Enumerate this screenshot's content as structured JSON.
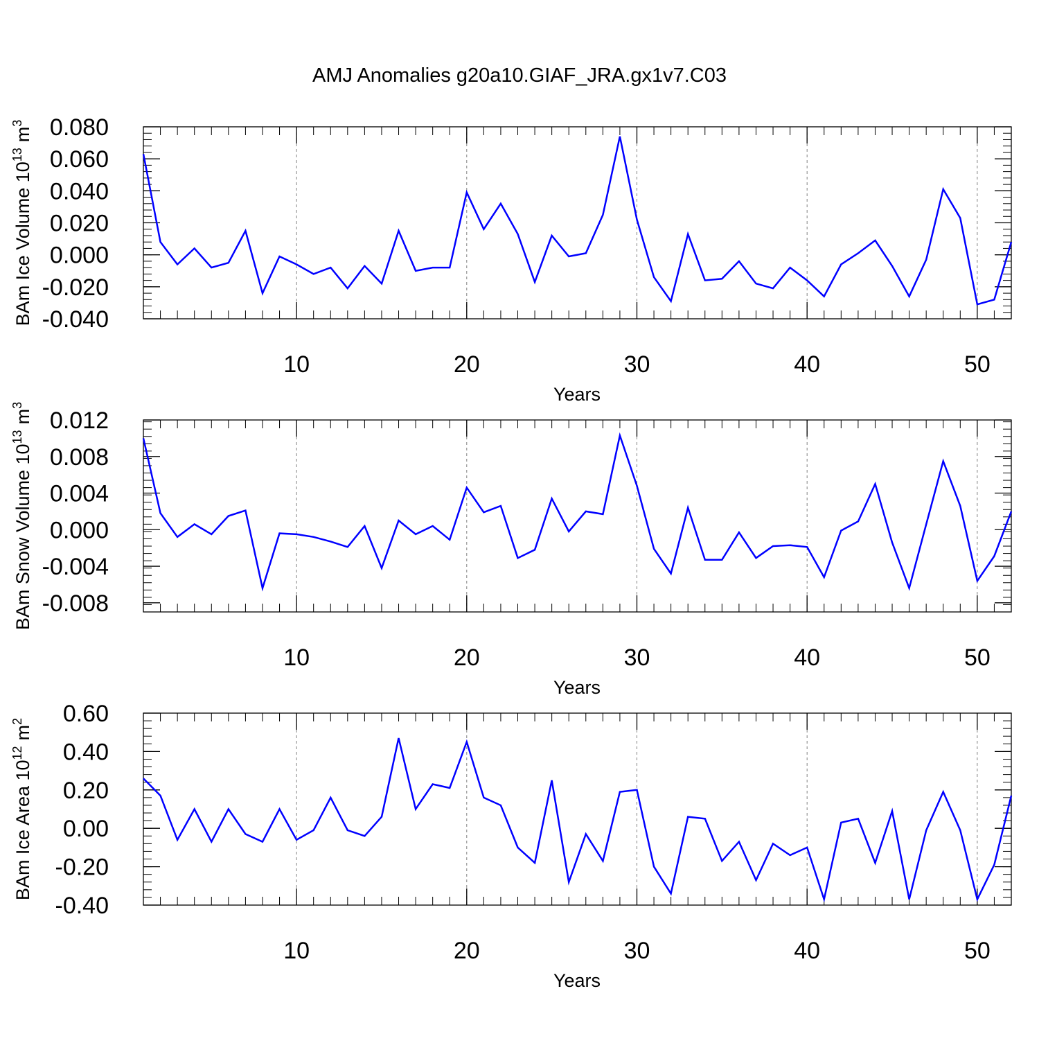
{
  "figure": {
    "title": "AMJ Anomalies g20a10.GIAF_JRA.gx1v7.C03"
  },
  "colors": {
    "line": "#0000ff",
    "axis": "#000000",
    "grid": "#808080"
  },
  "chart_data": [
    {
      "type": "line",
      "xlabel": "Years",
      "ylabel": "BAm Ice Volume 10",
      "ylabel_exponent": "13",
      "ylabel_unit": "m",
      "ylabel_unit_exponent": "3",
      "xlim": [
        1,
        52
      ],
      "ylim": [
        -0.04,
        0.08
      ],
      "xticks": [
        "10",
        "20",
        "30",
        "40",
        "50"
      ],
      "xtick_values": [
        10,
        20,
        30,
        40,
        50
      ],
      "yticks": [
        "-0.040",
        "-0.020",
        "0.000",
        "0.020",
        "0.040",
        "0.060",
        "0.080"
      ],
      "ytick_values": [
        -0.04,
        -0.02,
        0.0,
        0.02,
        0.04,
        0.06,
        0.08
      ],
      "grid": "vertical-dashed",
      "x": [
        1,
        2,
        3,
        4,
        5,
        6,
        7,
        8,
        9,
        10,
        11,
        12,
        13,
        14,
        15,
        16,
        17,
        18,
        19,
        20,
        21,
        22,
        23,
        24,
        25,
        26,
        27,
        28,
        29,
        30,
        31,
        32,
        33,
        34,
        35,
        36,
        37,
        38,
        39,
        40,
        41,
        42,
        43,
        44,
        45,
        46,
        47,
        48,
        49,
        50,
        51,
        52
      ],
      "values": [
        0.063,
        0.008,
        -0.006,
        0.004,
        -0.008,
        -0.005,
        0.015,
        -0.024,
        -0.001,
        -0.006,
        -0.012,
        -0.008,
        -0.021,
        -0.007,
        -0.018,
        0.015,
        -0.01,
        -0.008,
        -0.008,
        0.039,
        0.016,
        0.032,
        0.013,
        -0.017,
        0.012,
        -0.001,
        0.001,
        0.025,
        0.074,
        0.022,
        -0.014,
        -0.029,
        0.013,
        -0.016,
        -0.015,
        -0.004,
        -0.018,
        -0.021,
        -0.008,
        -0.016,
        -0.026,
        -0.006,
        0.001,
        0.009,
        -0.007,
        -0.026,
        -0.003,
        0.041,
        0.023,
        -0.031,
        -0.028,
        0.008
      ]
    },
    {
      "type": "line",
      "xlabel": "Years",
      "ylabel": "BAm Snow Volume 10",
      "ylabel_exponent": "13",
      "ylabel_unit": "m",
      "ylabel_unit_exponent": "3",
      "xlim": [
        1,
        52
      ],
      "ylim": [
        -0.009,
        0.012
      ],
      "xticks": [
        "10",
        "20",
        "30",
        "40",
        "50"
      ],
      "xtick_values": [
        10,
        20,
        30,
        40,
        50
      ],
      "yticks": [
        "-0.008",
        "-0.004",
        "0.000",
        "0.004",
        "0.008",
        "0.012"
      ],
      "ytick_values": [
        -0.008,
        -0.004,
        0.0,
        0.004,
        0.008,
        0.012
      ],
      "grid": "vertical-dashed",
      "x": [
        1,
        2,
        3,
        4,
        5,
        6,
        7,
        8,
        9,
        10,
        11,
        12,
        13,
        14,
        15,
        16,
        17,
        18,
        19,
        20,
        21,
        22,
        23,
        24,
        25,
        26,
        27,
        28,
        29,
        30,
        31,
        32,
        33,
        34,
        35,
        36,
        37,
        38,
        39,
        40,
        41,
        42,
        43,
        44,
        45,
        46,
        47,
        48,
        49,
        50,
        51,
        52
      ],
      "values": [
        0.01,
        0.0018,
        -0.0008,
        0.0006,
        -0.0005,
        0.0015,
        0.0021,
        -0.0064,
        -0.0004,
        -0.0005,
        -0.0008,
        -0.0013,
        -0.0019,
        0.0004,
        -0.0042,
        0.001,
        -0.0005,
        0.0004,
        -0.0011,
        0.0046,
        0.0019,
        0.0026,
        -0.0031,
        -0.0022,
        0.0034,
        -0.0002,
        0.002,
        0.0017,
        0.0103,
        0.0048,
        -0.0021,
        -0.0048,
        0.0024,
        -0.0033,
        -0.0033,
        -0.0003,
        -0.0031,
        -0.0018,
        -0.0017,
        -0.0019,
        -0.0052,
        -0.0001,
        0.0009,
        0.005,
        -0.0014,
        -0.0064,
        0.0006,
        0.0075,
        0.0026,
        -0.0056,
        -0.0029,
        0.002
      ]
    },
    {
      "type": "line",
      "xlabel": "Years",
      "ylabel": "BAm Ice Area 10",
      "ylabel_exponent": "12",
      "ylabel_unit": "m",
      "ylabel_unit_exponent": "2",
      "xlim": [
        1,
        52
      ],
      "ylim": [
        -0.4,
        0.6
      ],
      "xticks": [
        "10",
        "20",
        "30",
        "40",
        "50"
      ],
      "xtick_values": [
        10,
        20,
        30,
        40,
        50
      ],
      "yticks": [
        "-0.40",
        "-0.20",
        "0.00",
        "0.20",
        "0.40",
        "0.60"
      ],
      "ytick_values": [
        -0.4,
        -0.2,
        0.0,
        0.2,
        0.4,
        0.6
      ],
      "grid": "vertical-dashed",
      "x": [
        1,
        2,
        3,
        4,
        5,
        6,
        7,
        8,
        9,
        10,
        11,
        12,
        13,
        14,
        15,
        16,
        17,
        18,
        19,
        20,
        21,
        22,
        23,
        24,
        25,
        26,
        27,
        28,
        29,
        30,
        31,
        32,
        33,
        34,
        35,
        36,
        37,
        38,
        39,
        40,
        41,
        42,
        43,
        44,
        45,
        46,
        47,
        48,
        49,
        50,
        51,
        52
      ],
      "values": [
        0.26,
        0.17,
        -0.06,
        0.1,
        -0.07,
        0.1,
        -0.03,
        -0.07,
        0.1,
        -0.06,
        -0.01,
        0.16,
        -0.01,
        -0.04,
        0.06,
        0.47,
        0.1,
        0.23,
        0.21,
        0.45,
        0.16,
        0.12,
        -0.1,
        -0.18,
        0.25,
        -0.28,
        -0.03,
        -0.17,
        0.19,
        0.2,
        -0.2,
        -0.34,
        0.06,
        0.05,
        -0.17,
        -0.07,
        -0.27,
        -0.08,
        -0.14,
        -0.1,
        -0.37,
        0.03,
        0.05,
        -0.18,
        0.09,
        -0.37,
        -0.01,
        0.19,
        -0.01,
        -0.37,
        -0.19,
        0.17
      ]
    }
  ]
}
